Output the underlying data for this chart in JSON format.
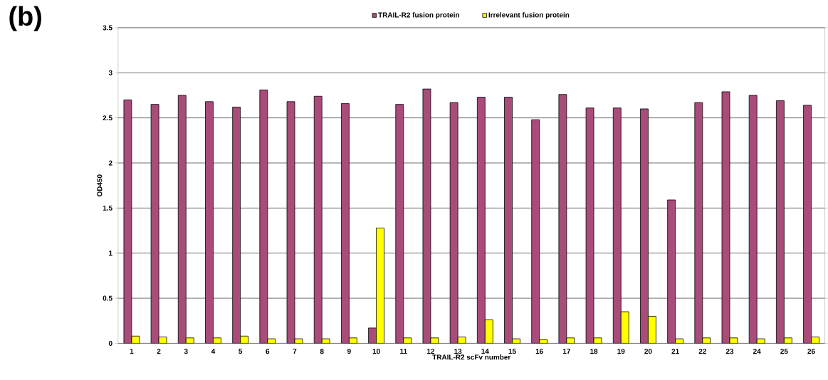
{
  "chart_data": {
    "type": "bar",
    "annotations": [
      "(b)"
    ],
    "xlabel": "TRAIL-R2 scFv number",
    "ylabel": "OD450",
    "categories": [
      "1",
      "2",
      "3",
      "4",
      "5",
      "6",
      "7",
      "8",
      "9",
      "10",
      "11",
      "12",
      "13",
      "14",
      "15",
      "16",
      "17",
      "18",
      "19",
      "20",
      "21",
      "22",
      "23",
      "24",
      "25",
      "26"
    ],
    "series": [
      {
        "name": "TRAIL-R2 fusion protein",
        "color": "#a94c7a",
        "values": [
          2.7,
          2.65,
          2.75,
          2.68,
          2.62,
          2.81,
          2.68,
          2.74,
          2.66,
          0.17,
          2.65,
          2.82,
          2.67,
          2.73,
          2.73,
          2.48,
          2.76,
          2.61,
          2.61,
          2.6,
          1.59,
          2.67,
          2.79,
          2.75,
          2.69,
          2.64
        ]
      },
      {
        "name": "Irrelevant fusion protein",
        "color": "#ffff00",
        "values": [
          0.08,
          0.07,
          0.06,
          0.06,
          0.08,
          0.05,
          0.05,
          0.05,
          0.06,
          1.28,
          0.06,
          0.06,
          0.07,
          0.26,
          0.05,
          0.04,
          0.06,
          0.06,
          0.35,
          0.3,
          0.05,
          0.06,
          0.06,
          0.05,
          0.06,
          0.07
        ]
      }
    ],
    "ylim": [
      0,
      3.5
    ],
    "yticks": [
      0,
      0.5,
      1,
      1.5,
      2,
      2.5,
      3,
      3.5
    ],
    "grid": "y",
    "legend": "top"
  }
}
